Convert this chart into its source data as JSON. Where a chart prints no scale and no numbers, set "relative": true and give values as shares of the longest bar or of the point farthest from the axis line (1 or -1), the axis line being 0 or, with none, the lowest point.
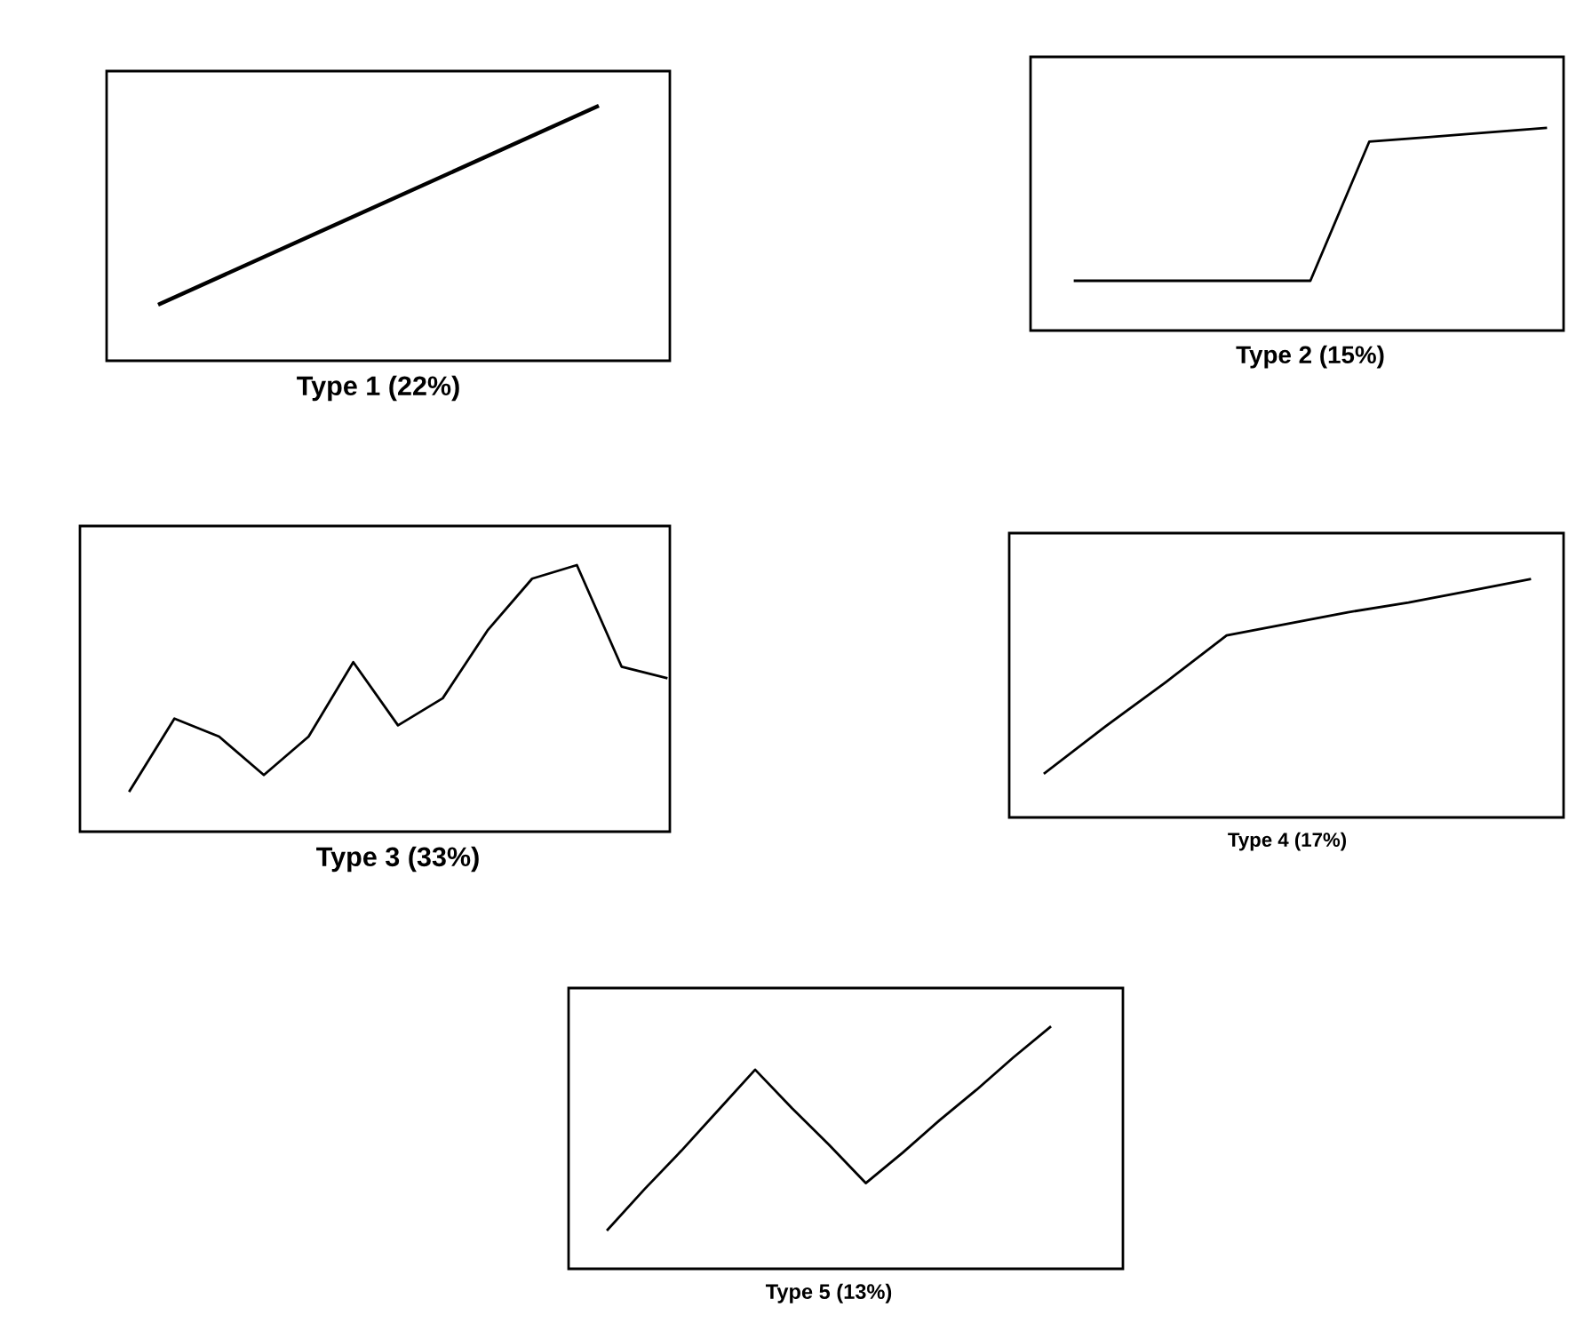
{
  "chart_data": [
    {
      "type": "line",
      "relative": true,
      "xlabel": "Type 1 (22%)",
      "categories": [
        null,
        null
      ],
      "series": [
        {
          "color": "#000000",
          "values": [
            0,
            1
          ]
        }
      ]
    },
    {
      "type": "line",
      "relative": true,
      "xlabel": "Type 2 (15%)",
      "categories": [
        null,
        null,
        null,
        null,
        null,
        null,
        null,
        null,
        null
      ],
      "series": [
        {
          "color": "#000000",
          "values": [
            0,
            0,
            0,
            0,
            0,
            0.91,
            0.94,
            0.97,
            1
          ]
        }
      ]
    },
    {
      "type": "line",
      "relative": true,
      "xlabel": "Type 3 (33%)",
      "categories": [
        null,
        null,
        null,
        null,
        null,
        null,
        null,
        null,
        null,
        null,
        null,
        null,
        null
      ],
      "series": [
        {
          "color": "#000000",
          "values": [
            0,
            0.32,
            0.24,
            0.07,
            0.24,
            0.57,
            0.29,
            0.41,
            0.71,
            0.94,
            1,
            0.55,
            0.5
          ]
        }
      ]
    },
    {
      "type": "line",
      "relative": true,
      "xlabel": "Type 4 (17%)",
      "categories": [
        null,
        null,
        null,
        null,
        null,
        null,
        null,
        null,
        null
      ],
      "series": [
        {
          "color": "#000000",
          "values": [
            0,
            0.24,
            0.47,
            0.71,
            0.77,
            0.83,
            0.88,
            0.94,
            1
          ]
        }
      ]
    },
    {
      "type": "line",
      "relative": true,
      "xlabel": "Type 5 (13%)",
      "categories": [
        null,
        null,
        null,
        null,
        null,
        null,
        null,
        null,
        null,
        null,
        null,
        null,
        null
      ],
      "series": [
        {
          "color": "#000000",
          "values": [
            0,
            0.2,
            0.39,
            0.59,
            0.79,
            0.6,
            0.42,
            0.23,
            0.38,
            0.54,
            0.69,
            0.85,
            1
          ]
        }
      ]
    }
  ]
}
